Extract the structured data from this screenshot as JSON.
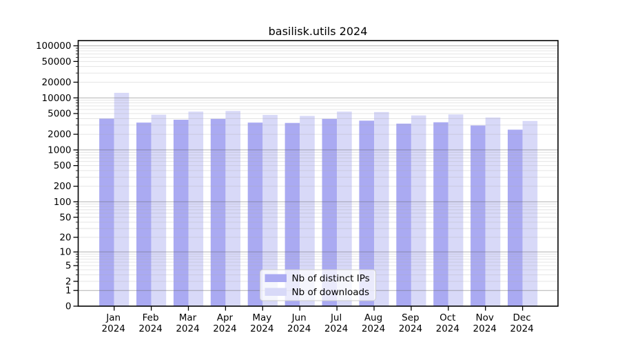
{
  "chart_data": {
    "type": "bar",
    "title": "basilisk.utils 2024",
    "categories": [
      "Jan",
      "Feb",
      "Mar",
      "Apr",
      "May",
      "Jun",
      "Jul",
      "Aug",
      "Sep",
      "Oct",
      "Nov",
      "Dec"
    ],
    "x_year_line": "2024",
    "series": [
      {
        "name": "Nb of distinct IPs",
        "color": "#aaaaf2",
        "values": [
          4000,
          3350,
          3800,
          3950,
          3350,
          3300,
          3950,
          3650,
          3200,
          3400,
          2950,
          2450
        ]
      },
      {
        "name": "Nb of downloads",
        "color": "#d8d9f8",
        "values": [
          12500,
          4750,
          5450,
          5600,
          4700,
          4500,
          5450,
          5350,
          4600,
          4800,
          4200,
          3600
        ]
      }
    ],
    "yscale": "log1p",
    "ylim": [
      0,
      125000
    ],
    "ytick_labels": [
      0,
      1,
      2,
      5,
      10,
      20,
      50,
      100,
      200,
      500,
      1000,
      2000,
      5000,
      10000,
      20000,
      50000,
      100000
    ],
    "grid": true,
    "legend_position": "lower center"
  },
  "colors": {
    "bar_distinct_ips": "#aaaaf2",
    "bar_downloads": "#d8d9f8",
    "major_gridline": "#b3b3b3",
    "minor_gridline": "#e4e4e4",
    "axis": "#000000",
    "legend_border": "#cccccc",
    "legend_background": "#ffffff"
  }
}
